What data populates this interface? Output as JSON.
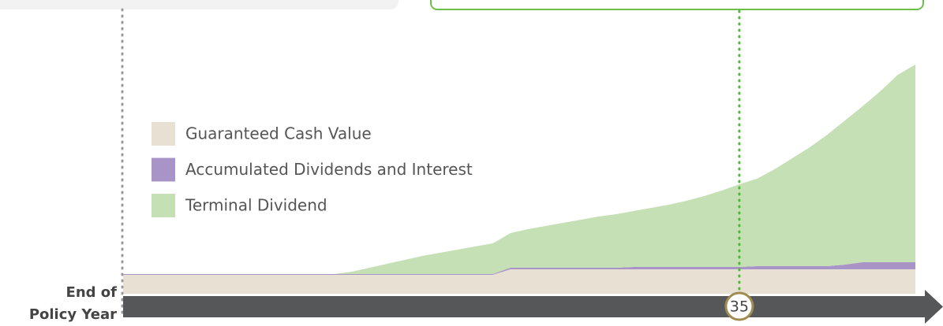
{
  "chart_data": {
    "type": "stacked_area",
    "x_label": "End of Policy Year",
    "x": [
      0,
      1,
      2,
      3,
      4,
      5,
      6,
      7,
      8,
      9,
      10,
      11,
      12,
      13,
      14,
      15,
      16,
      17,
      18,
      19,
      20,
      21,
      22,
      23,
      24,
      25,
      26,
      27,
      28,
      29,
      30,
      31,
      32,
      33,
      34,
      35,
      36,
      37,
      38,
      39,
      40,
      41,
      42,
      43,
      44,
      45
    ],
    "xlim": [
      0,
      45
    ],
    "ylim": [
      0,
      300
    ],
    "marker": 35,
    "series": [
      {
        "name": "Guaranteed Cash Value",
        "color": "#e8e0d2",
        "values": [
          24,
          24,
          24,
          24,
          24,
          24,
          24,
          24,
          24,
          24,
          24,
          24,
          24,
          24,
          24,
          24,
          24,
          24,
          24,
          24,
          24,
          24,
          31,
          31,
          31,
          31,
          31,
          31,
          31,
          31,
          31,
          31,
          31,
          31,
          31,
          31,
          31,
          31,
          31,
          31,
          31,
          31,
          31,
          31,
          31,
          31
        ]
      },
      {
        "name": "Accumulated Dividends and Interest",
        "color": "#a894c6",
        "values": [
          1,
          1,
          1,
          1,
          1,
          1,
          1,
          1,
          1,
          1,
          1,
          1,
          1,
          1,
          1,
          1,
          1,
          1,
          1,
          1,
          1,
          1,
          2,
          2,
          2,
          2,
          2,
          2,
          2,
          3,
          3,
          3,
          3,
          3,
          3,
          3,
          4,
          4,
          4,
          4,
          4,
          6,
          9,
          9,
          9,
          9
        ]
      },
      {
        "name": "Terminal Dividend",
        "color": "#c5e0b4",
        "values": [
          0,
          0,
          0,
          0,
          0,
          0,
          0,
          0,
          0,
          0,
          0,
          0,
          0,
          3,
          8,
          13,
          18,
          23,
          27,
          31,
          35,
          39,
          44,
          49,
          53,
          57,
          61,
          65,
          68,
          71,
          75,
          79,
          84,
          90,
          97,
          105,
          111,
          123,
          137,
          151,
          167,
          183,
          198,
          217,
          238,
          251
        ]
      }
    ]
  }
}
